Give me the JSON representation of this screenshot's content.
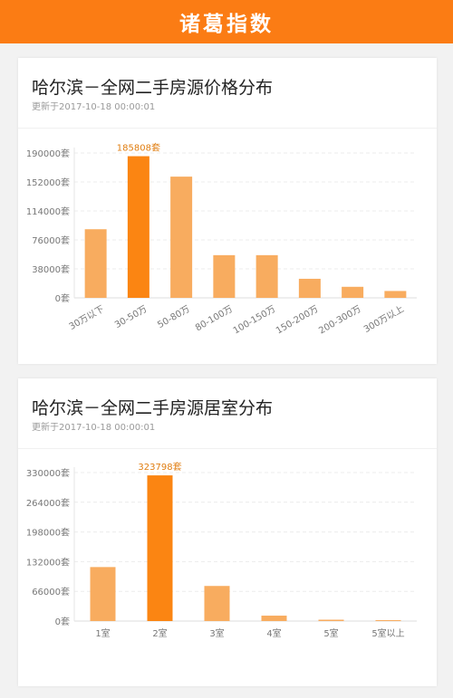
{
  "header": {
    "title": "诸葛指数"
  },
  "colors": {
    "accent": "#fb7c14",
    "bar": "#f8ac5f",
    "bar_highlight": "#fb8512"
  },
  "cards": [
    {
      "title": "哈尔滨－全网二手房源价格分布",
      "updated": "更新于2017-10-18 00:00:01"
    },
    {
      "title": "哈尔滨－全网二手房源居室分布",
      "updated": "更新于2017-10-18 00:00:01"
    }
  ],
  "chart_data": [
    {
      "type": "bar",
      "title": "哈尔滨－全网二手房源价格分布",
      "categories": [
        "30万以下",
        "30-50万",
        "50-80万",
        "80-100万",
        "100-150万",
        "150-200万",
        "200-300万",
        "300万以上"
      ],
      "values": [
        90000,
        185808,
        159000,
        56000,
        56000,
        25000,
        14500,
        9000
      ],
      "yticks": [
        "0套",
        "38000套",
        "76000套",
        "114000套",
        "152000套",
        "190000套"
      ],
      "ylim": [
        0,
        190000
      ],
      "highlight_index": 1,
      "highlight_label": "185808套",
      "grid": true
    },
    {
      "type": "bar",
      "title": "哈尔滨－全网二手房源居室分布",
      "categories": [
        "1室",
        "2室",
        "3室",
        "4室",
        "5室",
        "5室以上"
      ],
      "values": [
        120000,
        323798,
        78000,
        12000,
        3000,
        2000
      ],
      "yticks": [
        "0套",
        "66000套",
        "132000套",
        "198000套",
        "264000套",
        "330000套"
      ],
      "ylim": [
        0,
        330000
      ],
      "highlight_index": 1,
      "highlight_label": "323798套",
      "grid": true
    }
  ]
}
